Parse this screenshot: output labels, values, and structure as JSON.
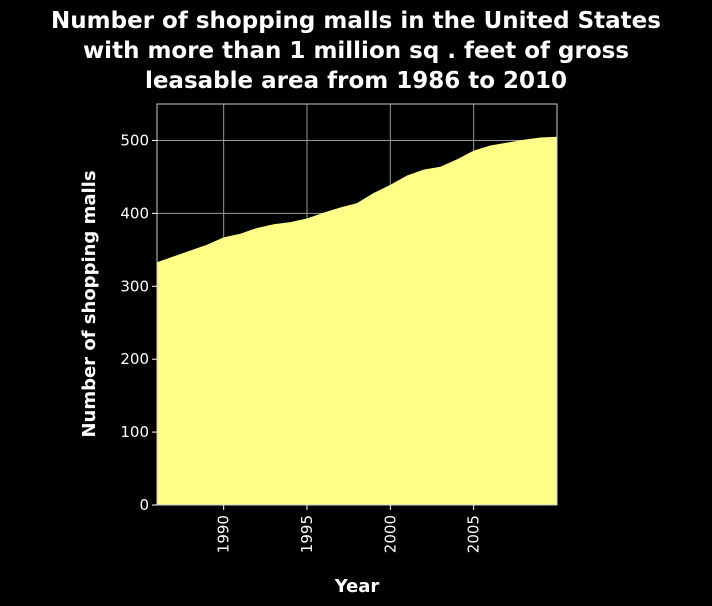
{
  "title_lines": [
    "Number of shopping malls in the United States",
    "with more than 1 million sq . feet of gross",
    "leasable area from 1986 to 2010"
  ],
  "chart_data": {
    "type": "area",
    "title": "Number of shopping malls in the United States with more than 1 million sq . feet of gross leasable area from 1986 to 2010",
    "xlabel": "Year",
    "ylabel": "Number of shopping malls",
    "x": [
      1986,
      1987,
      1988,
      1989,
      1990,
      1991,
      1992,
      1993,
      1994,
      1995,
      1996,
      1997,
      1998,
      1999,
      2000,
      2001,
      2002,
      2003,
      2004,
      2005,
      2006,
      2007,
      2008,
      2009,
      2010
    ],
    "values": [
      333,
      341,
      349,
      357,
      367,
      372,
      380,
      385,
      388,
      393,
      401,
      408,
      414,
      428,
      439,
      452,
      460,
      464,
      474,
      486,
      493,
      497,
      501,
      504,
      505
    ],
    "xlim": [
      1986,
      2010
    ],
    "ylim": [
      0,
      550
    ],
    "xticks": [
      1990,
      1995,
      2000,
      2005
    ],
    "yticks": [
      0,
      100,
      200,
      300,
      400,
      500
    ],
    "grid": true,
    "colors": {
      "fill": "#ffff88",
      "background": "#000000",
      "grid": "#999999",
      "text": "#ffffff"
    }
  }
}
